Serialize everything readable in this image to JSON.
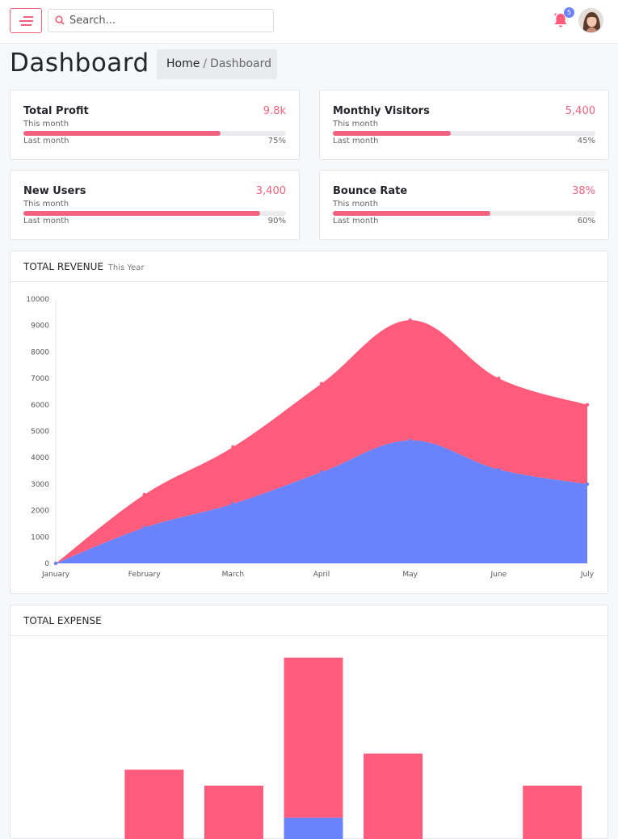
{
  "topbar": {
    "search_placeholder": "Search...",
    "notification_count": "5"
  },
  "header": {
    "title": "Dashboard",
    "breadcrumb": {
      "home": "Home",
      "separator": "/",
      "current": "Dashboard"
    }
  },
  "stats": [
    {
      "title": "Total Profit",
      "value": "9.8k",
      "this_month": "This month",
      "last_month": "Last month",
      "percent_label": "75%",
      "percent": 75
    },
    {
      "title": "Monthly Visitors",
      "value": "5,400",
      "this_month": "This month",
      "last_month": "Last month",
      "percent_label": "45%",
      "percent": 45
    },
    {
      "title": "New Users",
      "value": "3,400",
      "this_month": "This month",
      "last_month": "Last month",
      "percent_label": "90%",
      "percent": 90
    },
    {
      "title": "Bounce Rate",
      "value": "38%",
      "this_month": "This month",
      "last_month": "Last month",
      "percent_label": "60%",
      "percent": 60
    }
  ],
  "revenue": {
    "title": "TOTAL REVENUE",
    "subtitle": "This Year"
  },
  "expense": {
    "title": "TOTAL EXPENSE"
  },
  "colors": {
    "accent": "#f0627f",
    "pink_series": "#ff5c7c",
    "blue_series": "#6a82fb"
  },
  "chart_data": [
    {
      "type": "area",
      "categories": [
        "January",
        "February",
        "March",
        "April",
        "May",
        "June",
        "July"
      ],
      "yticks": [
        "0",
        "1000",
        "2000",
        "3000",
        "4000",
        "5000",
        "6000",
        "7000",
        "8000",
        "9000",
        "10000"
      ],
      "ylim": [
        0,
        10000
      ],
      "stacked": true,
      "series": [
        {
          "color": "#6a82fb",
          "values": [
            0,
            1350,
            2250,
            3450,
            4650,
            3550,
            3000
          ]
        },
        {
          "color": "#ff5c7c",
          "values": [
            0,
            1250,
            2150,
            3350,
            4550,
            3450,
            3000
          ]
        }
      ]
    },
    {
      "type": "bar",
      "stacked": true,
      "categories": [
        "",
        "",
        "",
        "",
        "",
        "",
        ""
      ],
      "series": [
        {
          "color": "#6a82fb",
          "values": [
            0,
            0,
            0,
            80,
            0,
            0,
            0
          ]
        },
        {
          "color": "#ff5c7c",
          "values": [
            0,
            260,
            200,
            600,
            320,
            0,
            200
          ]
        }
      ]
    }
  ]
}
